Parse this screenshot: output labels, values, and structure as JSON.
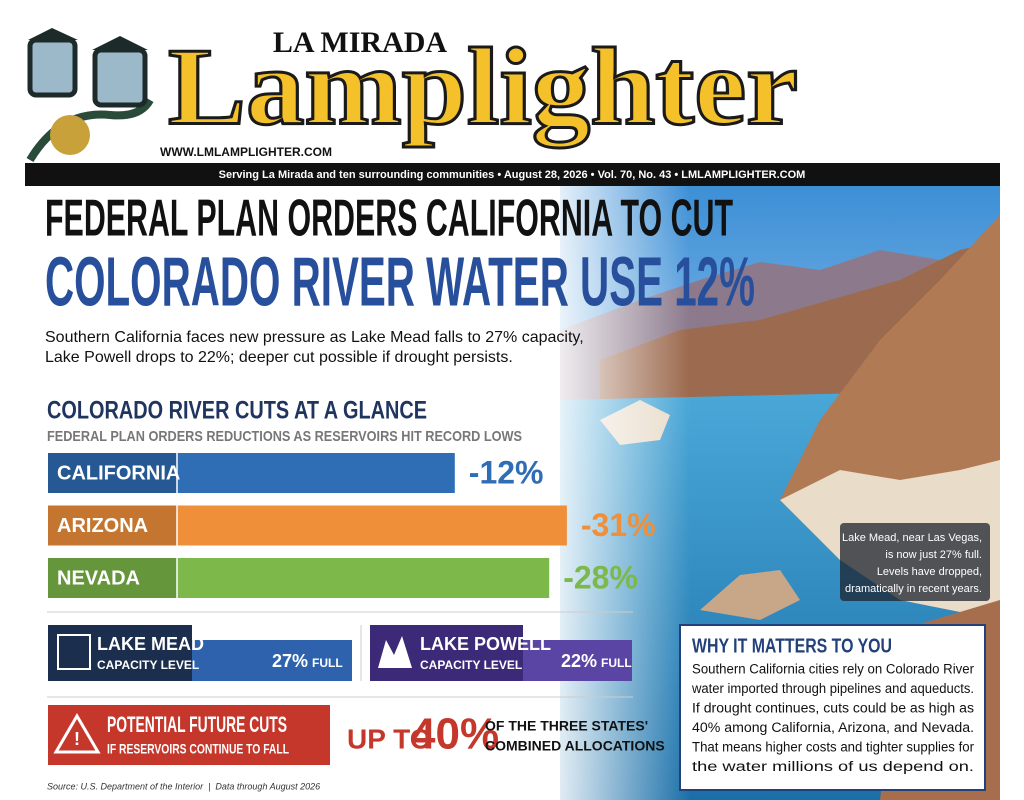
{
  "masthead": {
    "top": "LA MIRADA",
    "name": "Lamplighter",
    "url": "WWW.LMLAMPLIGHTER.COM",
    "tagline": "Serving La Mirada and ten surrounding communities • August 28, 2026 • Vol. 70, No. 43 • LMLAMPLIGHTER.COM"
  },
  "headline": {
    "line1": "FEDERAL PLAN ORDERS CALIFORNIA TO CUT",
    "line2": "COLORADO RIVER WATER USE 12%",
    "deck": [
      "Southern California faces new pressure as Lake Mead falls to 27% capacity,",
      "Lake Powell drops to 22%; deeper cut possible if drought persists."
    ]
  },
  "chart_data": {
    "type": "bar",
    "title": "COLORADO RIVER CUTS AT A GLANCE",
    "subtitle": "FEDERAL PLAN ORDERS REDUCTIONS AS RESERVOIRS HIT RECORD LOWS",
    "categories": [
      "CALIFORNIA",
      "ARIZONA",
      "NEVADA"
    ],
    "values": [
      -12,
      -31,
      -28
    ],
    "value_labels": [
      "-12%",
      "-31%",
      "-28%"
    ],
    "colors": [
      "#2f6db5",
      "#ef8f3a",
      "#7cb84a"
    ]
  },
  "capacity": [
    {
      "name": "LAKE MEAD",
      "sub": "CAPACITY LEVEL",
      "level": "27%",
      "unit": "FULL"
    },
    {
      "name": "LAKE POWELL",
      "sub": "CAPACITY LEVEL",
      "level": "22%",
      "unit": "FULL"
    }
  ],
  "future": {
    "title": "POTENTIAL FUTURE CUTS",
    "sub": "IF RESERVOIRS CONTINUE TO FALL",
    "lead": "UP TO",
    "amount": "40%",
    "note": [
      "OF THE THREE STATES'",
      "COMBINED ALLOCATIONS"
    ]
  },
  "source": "Source: U.S. Department of the Interior  |  Data through August 2026",
  "caption": [
    "Lake Mead, near Las Vegas,",
    "is now just 27% full.",
    "Levels have dropped,",
    "dramatically in recent years."
  ],
  "sidebar": {
    "title": "WHY IT MATTERS TO YOU",
    "lines": [
      "Southern California cities rely on Colorado River",
      "water imported through pipelines and aqueducts.",
      "If drought continues, cuts could be as high as",
      "40% among California, Arizona, and Nevada.",
      "That means higher costs and tighter supplies for",
      "the water millions of us depend on."
    ]
  }
}
